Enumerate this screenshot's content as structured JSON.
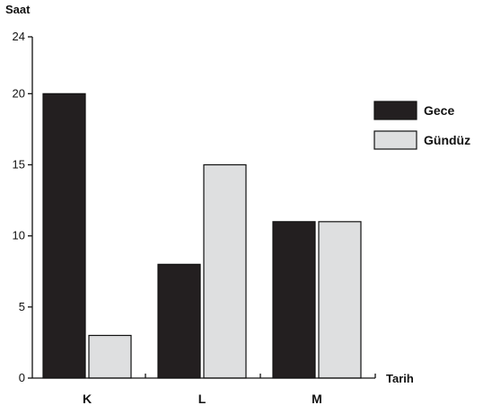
{
  "chart_data": {
    "type": "bar",
    "title": "",
    "ylabel": "Saat",
    "xlabel": "Tarih",
    "categories": [
      "K",
      "L",
      "M"
    ],
    "ylim": [
      0,
      24
    ],
    "yticks": [
      0,
      5,
      10,
      15,
      20,
      24
    ],
    "grid": false,
    "legend_position": "right",
    "series": [
      {
        "name": "Gece",
        "values": [
          20,
          8,
          11
        ],
        "color": "#231f20"
      },
      {
        "name": "Gündüz",
        "values": [
          3,
          15,
          11
        ],
        "color": "#dedfe0"
      }
    ]
  }
}
